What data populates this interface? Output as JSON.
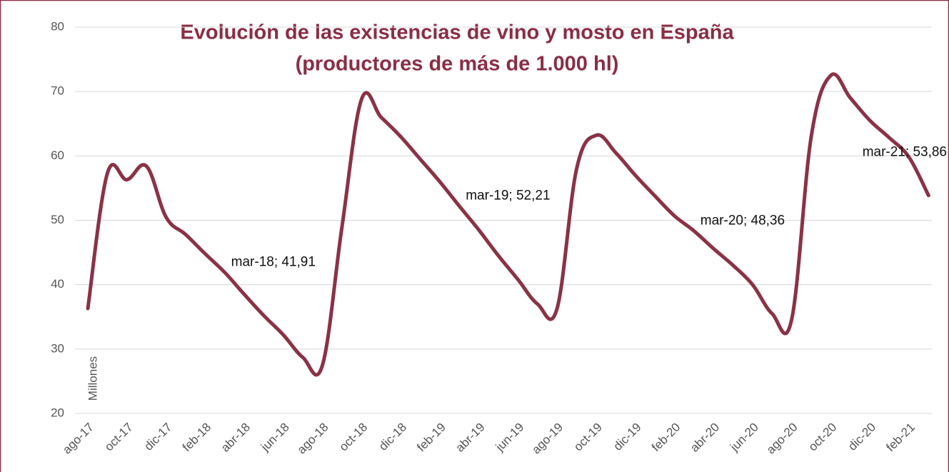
{
  "chart_data": {
    "type": "line",
    "title": [
      "Evolución de las existencias de vino y mosto en España",
      "(productores de más de 1.000 hl)"
    ],
    "y_label": "Millones",
    "categories": [
      "ago-17",
      null,
      "oct-17",
      null,
      "dic-17",
      null,
      "feb-18",
      null,
      "abr-18",
      null,
      "jun-18",
      null,
      "ago-18",
      null,
      "oct-18",
      null,
      "dic-18",
      null,
      "feb-19",
      null,
      "abr-19",
      null,
      "jun-19",
      null,
      "ago-19",
      null,
      "oct-19",
      null,
      "dic-19",
      null,
      "feb-20",
      null,
      "abr-20",
      null,
      "jun-20",
      null,
      "ago-20",
      null,
      "oct-20",
      null,
      "dic-20",
      null,
      "feb-21",
      null
    ],
    "series": [
      {
        "name": null,
        "color": "#8b3245",
        "values": [
          36.3,
          57.3,
          56.3,
          58.4,
          50.5,
          47.8,
          44.8,
          41.91,
          38.5,
          35.2,
          32.2,
          28.7,
          27.5,
          49,
          68.8,
          66,
          63,
          59.5,
          56,
          52.21,
          48.5,
          44.5,
          40.8,
          37,
          36.3,
          58,
          63.2,
          60.5,
          57,
          53.8,
          50.7,
          48.36,
          45.6,
          43,
          40,
          35.5,
          34.6,
          63,
          72.5,
          69,
          65.5,
          62.8,
          59.8,
          53.86
        ],
        "value_labels": [
          null,
          null,
          null,
          null,
          null,
          null,
          null,
          "mar-18; 41,91",
          null,
          null,
          null,
          null,
          null,
          null,
          null,
          null,
          null,
          null,
          null,
          "mar-19; 52,21",
          null,
          null,
          null,
          null,
          null,
          null,
          null,
          null,
          null,
          null,
          null,
          "mar-20; 48,36",
          null,
          null,
          null,
          null,
          null,
          null,
          null,
          null,
          null,
          null,
          null,
          "mar-21; 53,86"
        ]
      }
    ],
    "ylim": [
      20,
      80
    ],
    "yticks": [
      20,
      30,
      40,
      50,
      60,
      70,
      80
    ],
    "grid": true
  }
}
